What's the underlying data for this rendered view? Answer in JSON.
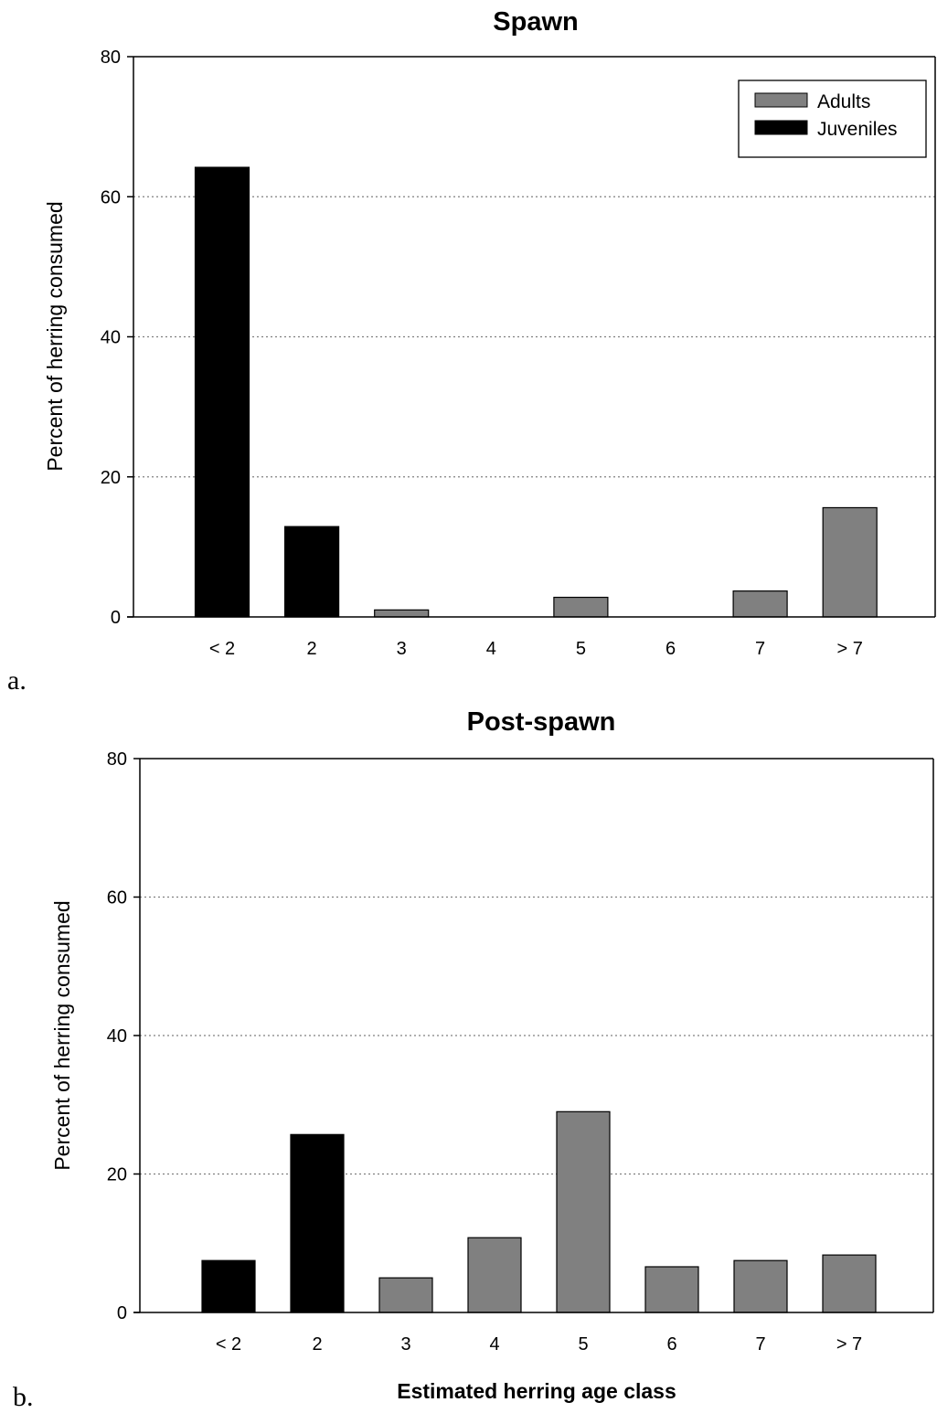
{
  "panel_labels": [
    "a.",
    "b."
  ],
  "legend": {
    "entries": [
      {
        "label": "Adults",
        "color": "#808080"
      },
      {
        "label": "Juveniles",
        "color": "#000000"
      }
    ]
  },
  "colors": {
    "adults": "#808080",
    "juveniles": "#000000",
    "gridline": "#808080",
    "axis": "#000000"
  },
  "chart_data": [
    {
      "type": "bar",
      "title": "Spawn",
      "xlabel": "",
      "ylabel": "Percent of herring consumed",
      "ylim": [
        0,
        80
      ],
      "yticks": [
        0,
        20,
        40,
        60,
        80
      ],
      "grid": "horizontal dotted",
      "legend_position": "top-right",
      "categories": [
        "< 2",
        "2",
        "3",
        "4",
        "5",
        "6",
        "7",
        "> 7"
      ],
      "values": [
        64.2,
        12.9,
        1.0,
        0,
        2.8,
        0,
        3.7,
        15.6
      ],
      "groups": [
        "Juveniles",
        "Juveniles",
        "Adults",
        "Adults",
        "Adults",
        "Adults",
        "Adults",
        "Adults"
      ]
    },
    {
      "type": "bar",
      "title": "Post-spawn",
      "xlabel": "Estimated herring age class",
      "ylabel": "Percent of herring consumed",
      "ylim": [
        0,
        80
      ],
      "yticks": [
        0,
        20,
        40,
        60,
        80
      ],
      "grid": "horizontal dotted",
      "legend_position": "none",
      "categories": [
        "< 2",
        "2",
        "3",
        "4",
        "5",
        "6",
        "7",
        "> 7"
      ],
      "values": [
        7.5,
        25.7,
        5.0,
        10.8,
        29.0,
        6.6,
        7.5,
        8.3
      ],
      "groups": [
        "Juveniles",
        "Juveniles",
        "Adults",
        "Adults",
        "Adults",
        "Adults",
        "Adults",
        "Adults"
      ]
    }
  ]
}
